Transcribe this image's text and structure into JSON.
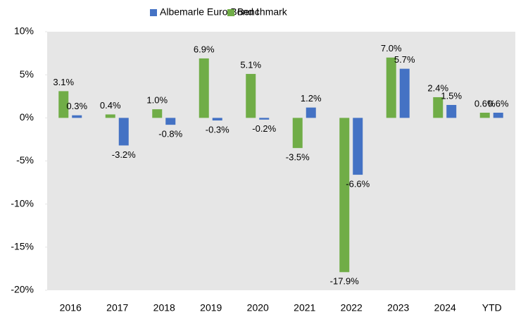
{
  "chart_data": {
    "type": "bar",
    "categories": [
      "2016",
      "2017",
      "2018",
      "2019",
      "2020",
      "2021",
      "2022",
      "2023",
      "2024",
      "YTD"
    ],
    "series": [
      {
        "name": "Albemarle Euro Bond I",
        "color": "#4472c4",
        "values": [
          0.3,
          -3.2,
          -0.8,
          -0.3,
          -0.2,
          1.2,
          -6.6,
          5.7,
          1.5,
          0.6
        ],
        "value_labels": [
          "0.3%",
          "-3.2%",
          "-0.8%",
          "-0.3%",
          "-0.2%",
          "1.2%",
          "-6.6%",
          "5.7%",
          "1.5%",
          "0.6%"
        ]
      },
      {
        "name": "Benchmark",
        "color": "#70ad47",
        "values": [
          3.1,
          0.4,
          1.0,
          6.9,
          5.1,
          -3.5,
          -17.9,
          7.0,
          2.4,
          0.6
        ],
        "value_labels": [
          "3.1%",
          "0.4%",
          "1.0%",
          "6.9%",
          "5.1%",
          "-3.5%",
          "-17.9%",
          "7.0%",
          "2.4%",
          "0.6%"
        ]
      }
    ],
    "ylim": [
      -20,
      10
    ],
    "yticks": [
      {
        "value": -20,
        "label": "-20%"
      },
      {
        "value": -15,
        "label": "-15%"
      },
      {
        "value": -10,
        "label": "-10%"
      },
      {
        "value": -5,
        "label": "-5%"
      },
      {
        "value": 0,
        "label": "0%"
      },
      {
        "value": 5,
        "label": "5%"
      },
      {
        "value": 10,
        "label": "10%"
      }
    ],
    "grid": false,
    "legend": "top"
  }
}
